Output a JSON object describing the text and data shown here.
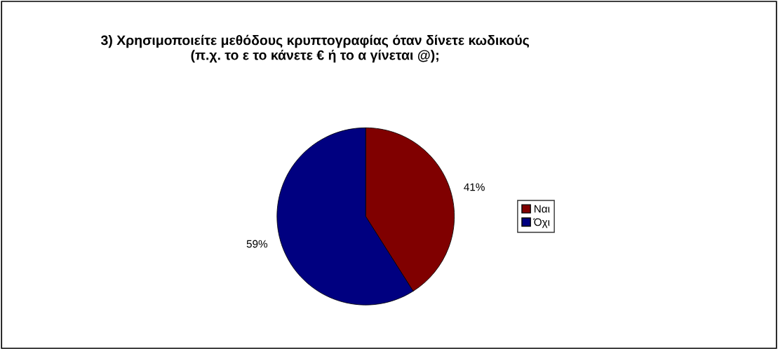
{
  "chart_data": {
    "type": "pie",
    "title": "3) Χρησιμοποιείτε μεθόδους κρυπτογραφίας όταν δίνετε κωδικούς\n(π.χ. το ε το κάνετε € ή το α γίνεται @);",
    "categories": [
      "Ναι",
      "Όχι"
    ],
    "values": [
      41,
      59
    ],
    "value_labels": [
      "41%",
      "59%"
    ],
    "colors": [
      "#800000",
      "#000080"
    ],
    "legend": "right"
  }
}
